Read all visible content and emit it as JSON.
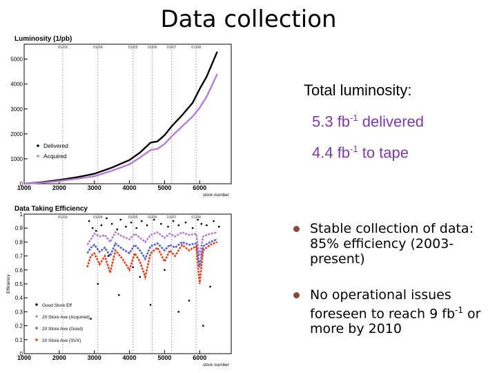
{
  "slide": {
    "title": "Data collection"
  },
  "luminosity_text": {
    "heading": "Total luminosity:",
    "delivered": {
      "value": "5.3 fb",
      "exp": "-1",
      "suffix": " delivered"
    },
    "to_tape": {
      "value": "4.4 fb",
      "exp": "-1",
      "suffix": " to tape"
    }
  },
  "bullets": {
    "b1": {
      "text": "Stable collection of data: 85% efficiency (2003-present)"
    },
    "b2": {
      "pre": "No operational issues foreseen to reach 9 fb",
      "exp": "-1",
      "post": " or more by 2010"
    }
  },
  "colors": {
    "delivered": "#000000",
    "acquired": "#b77bd0",
    "good": "#5060c8",
    "svx": "#e04020",
    "accent": "#7b3aa6"
  },
  "chart_data": [
    {
      "type": "line",
      "title": "Luminosity (1/pb)",
      "xlabel": "store number",
      "ylabel": "",
      "xlim": [
        1000,
        6900
      ],
      "ylim": [
        0,
        5600
      ],
      "xticks": [
        1000,
        2000,
        3000,
        4000,
        5000,
        6000
      ],
      "yticks": [
        0,
        1000,
        2000,
        3000,
        4000,
        5000
      ],
      "date_markers": [
        {
          "x": 2100,
          "label": "01/03"
        },
        {
          "x": 3100,
          "label": "01/04"
        },
        {
          "x": 4100,
          "label": "01/05"
        },
        {
          "x": 4650,
          "label": "01/06"
        },
        {
          "x": 5200,
          "label": "01/07"
        },
        {
          "x": 5900,
          "label": "01/08"
        }
      ],
      "legend": [
        "Delivered",
        "Acquired"
      ],
      "series": [
        {
          "name": "Delivered",
          "x": [
            1000,
            1500,
            2000,
            2500,
            3000,
            3500,
            4000,
            4300,
            4600,
            4800,
            5000,
            5200,
            5500,
            5800,
            6000,
            6200,
            6500
          ],
          "values": [
            0,
            60,
            150,
            260,
            400,
            650,
            950,
            1250,
            1650,
            1700,
            1950,
            2300,
            2750,
            3250,
            3800,
            4300,
            5300
          ]
        },
        {
          "name": "Acquired",
          "x": [
            1000,
            1500,
            2000,
            2500,
            3000,
            3500,
            4000,
            4300,
            4600,
            4800,
            5000,
            5200,
            5500,
            5800,
            6000,
            6200,
            6500
          ],
          "values": [
            0,
            40,
            110,
            200,
            300,
            520,
            780,
            1050,
            1350,
            1400,
            1600,
            1900,
            2300,
            2700,
            3050,
            3500,
            4400
          ]
        }
      ]
    },
    {
      "type": "scatter",
      "title": "Data Taking Efficiency",
      "xlabel": "store number",
      "ylabel": "Efficiency",
      "xlim": [
        1000,
        6900
      ],
      "ylim": [
        0,
        1.0
      ],
      "xticks": [
        1000,
        2000,
        3000,
        4000,
        5000,
        6000
      ],
      "yticks": [
        0,
        0.1,
        0.2,
        0.3,
        0.4,
        0.5,
        0.6,
        0.7,
        0.8,
        0.9,
        1
      ],
      "date_markers": [
        {
          "x": 2100,
          "label": "01/03"
        },
        {
          "x": 3100,
          "label": "01/04"
        },
        {
          "x": 4100,
          "label": "01/05"
        },
        {
          "x": 4650,
          "label": "01/06"
        },
        {
          "x": 5200,
          "label": "01/07"
        },
        {
          "x": 5900,
          "label": "01/08"
        }
      ],
      "legend": [
        "Good Store Eff",
        "20 Store Ave (Acquired)",
        "20 Store Ave (Good)",
        "20 Store Ave (SVX)"
      ],
      "series": [
        {
          "name": "20 Store Ave (Acquired)",
          "x": [
            2800,
            2900,
            3000,
            3150,
            3300,
            3450,
            3600,
            3800,
            4000,
            4150,
            4300,
            4450,
            4600,
            4800,
            5000,
            5150,
            5300,
            5500,
            5700,
            5900,
            6000,
            6100,
            6300,
            6500
          ],
          "values": [
            0.78,
            0.82,
            0.86,
            0.84,
            0.85,
            0.8,
            0.87,
            0.84,
            0.82,
            0.86,
            0.83,
            0.8,
            0.85,
            0.87,
            0.83,
            0.86,
            0.84,
            0.87,
            0.85,
            0.86,
            0.7,
            0.84,
            0.86,
            0.87
          ]
        },
        {
          "name": "20 Store Ave (Good)",
          "x": [
            2800,
            2900,
            3000,
            3150,
            3300,
            3450,
            3600,
            3800,
            4000,
            4150,
            4300,
            4450,
            4600,
            4800,
            5000,
            5150,
            5300,
            5500,
            5700,
            5900,
            6000,
            6100,
            6300,
            6500
          ],
          "values": [
            0.72,
            0.76,
            0.78,
            0.73,
            0.76,
            0.7,
            0.79,
            0.75,
            0.72,
            0.78,
            0.74,
            0.68,
            0.77,
            0.79,
            0.74,
            0.78,
            0.76,
            0.8,
            0.78,
            0.79,
            0.62,
            0.77,
            0.8,
            0.82
          ]
        },
        {
          "name": "20 Store Ave (SVX)",
          "x": [
            2800,
            2900,
            3000,
            3150,
            3300,
            3450,
            3600,
            3800,
            4000,
            4150,
            4300,
            4450,
            4600,
            4800,
            5000,
            5150,
            5300,
            5500,
            5700,
            5900,
            6000,
            6100,
            6300,
            6500
          ],
          "values": [
            0.62,
            0.7,
            0.72,
            0.64,
            0.7,
            0.58,
            0.74,
            0.68,
            0.6,
            0.72,
            0.66,
            0.55,
            0.72,
            0.76,
            0.66,
            0.74,
            0.7,
            0.78,
            0.74,
            0.77,
            0.5,
            0.74,
            0.78,
            0.8
          ]
        },
        {
          "name": "Good Store Eff",
          "x": [
            2850,
            2950,
            3050,
            3200,
            3350,
            3500,
            3650,
            3750,
            3900,
            4050,
            4200,
            4350,
            4500,
            4700,
            4900,
            5100,
            5250,
            5400,
            5600,
            5800,
            5950,
            6050,
            6200,
            6400,
            6550,
            3100,
            3700,
            4300,
            5000,
            5700,
            6300,
            2900,
            4100,
            5400,
            3400,
            4600,
            6100
          ],
          "values": [
            0.95,
            0.9,
            0.88,
            0.92,
            0.97,
            0.93,
            0.89,
            0.96,
            0.91,
            0.94,
            0.9,
            0.95,
            0.92,
            0.96,
            0.93,
            0.91,
            0.95,
            0.92,
            0.94,
            0.9,
            0.96,
            0.93,
            0.92,
            0.95,
            0.91,
            0.5,
            0.42,
            0.55,
            0.6,
            0.38,
            0.48,
            0.25,
            0.62,
            0.3,
            0.7,
            0.35,
            0.2
          ]
        }
      ]
    }
  ]
}
